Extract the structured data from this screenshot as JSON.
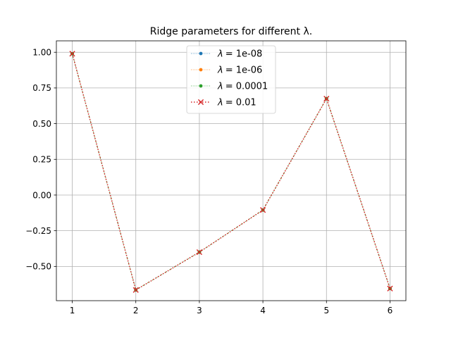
{
  "chart_data": {
    "type": "line",
    "title": "Ridge parameters for different λ.",
    "xlabel": "",
    "ylabel": "",
    "x": [
      1,
      2,
      3,
      4,
      5,
      6
    ],
    "xlim": [
      0.75,
      6.25
    ],
    "ylim": [
      -0.74,
      1.08
    ],
    "x_ticks": [
      1,
      2,
      3,
      4,
      5,
      6
    ],
    "y_ticks": [
      1.0,
      0.75,
      0.5,
      0.25,
      0.0,
      -0.25,
      -0.5
    ],
    "y_tick_labels": [
      "1.00",
      "0.75",
      "0.50",
      "0.25",
      "0.00",
      "−0.25",
      "−0.50"
    ],
    "grid": true,
    "legend_position": "top-center",
    "series": [
      {
        "name": "λ = 1e-08",
        "label_symbol": "λ",
        "label_value": "= 1e-08",
        "color": "#1f77b4",
        "marker": "dot",
        "linestyle": "dotted-thin",
        "values": [
          0.99,
          -0.665,
          -0.4,
          -0.105,
          0.675,
          -0.655
        ]
      },
      {
        "name": "λ = 1e-06",
        "label_symbol": "λ",
        "label_value": "= 1e-06",
        "color": "#ff7f0e",
        "marker": "dot",
        "linestyle": "dotted-thin",
        "values": [
          0.99,
          -0.665,
          -0.4,
          -0.105,
          0.675,
          -0.655
        ]
      },
      {
        "name": "λ = 0.0001",
        "label_symbol": "λ",
        "label_value": "= 0.0001",
        "color": "#2ca02c",
        "marker": "dot",
        "linestyle": "dotted-thin",
        "values": [
          0.99,
          -0.665,
          -0.4,
          -0.105,
          0.675,
          -0.655
        ]
      },
      {
        "name": "λ = 0.01",
        "label_symbol": "λ",
        "label_value": "= 0.01",
        "color": "#d62728",
        "marker": "x",
        "linestyle": "dotted-thick",
        "values": [
          0.99,
          -0.665,
          -0.4,
          -0.105,
          0.675,
          -0.655
        ]
      }
    ]
  }
}
